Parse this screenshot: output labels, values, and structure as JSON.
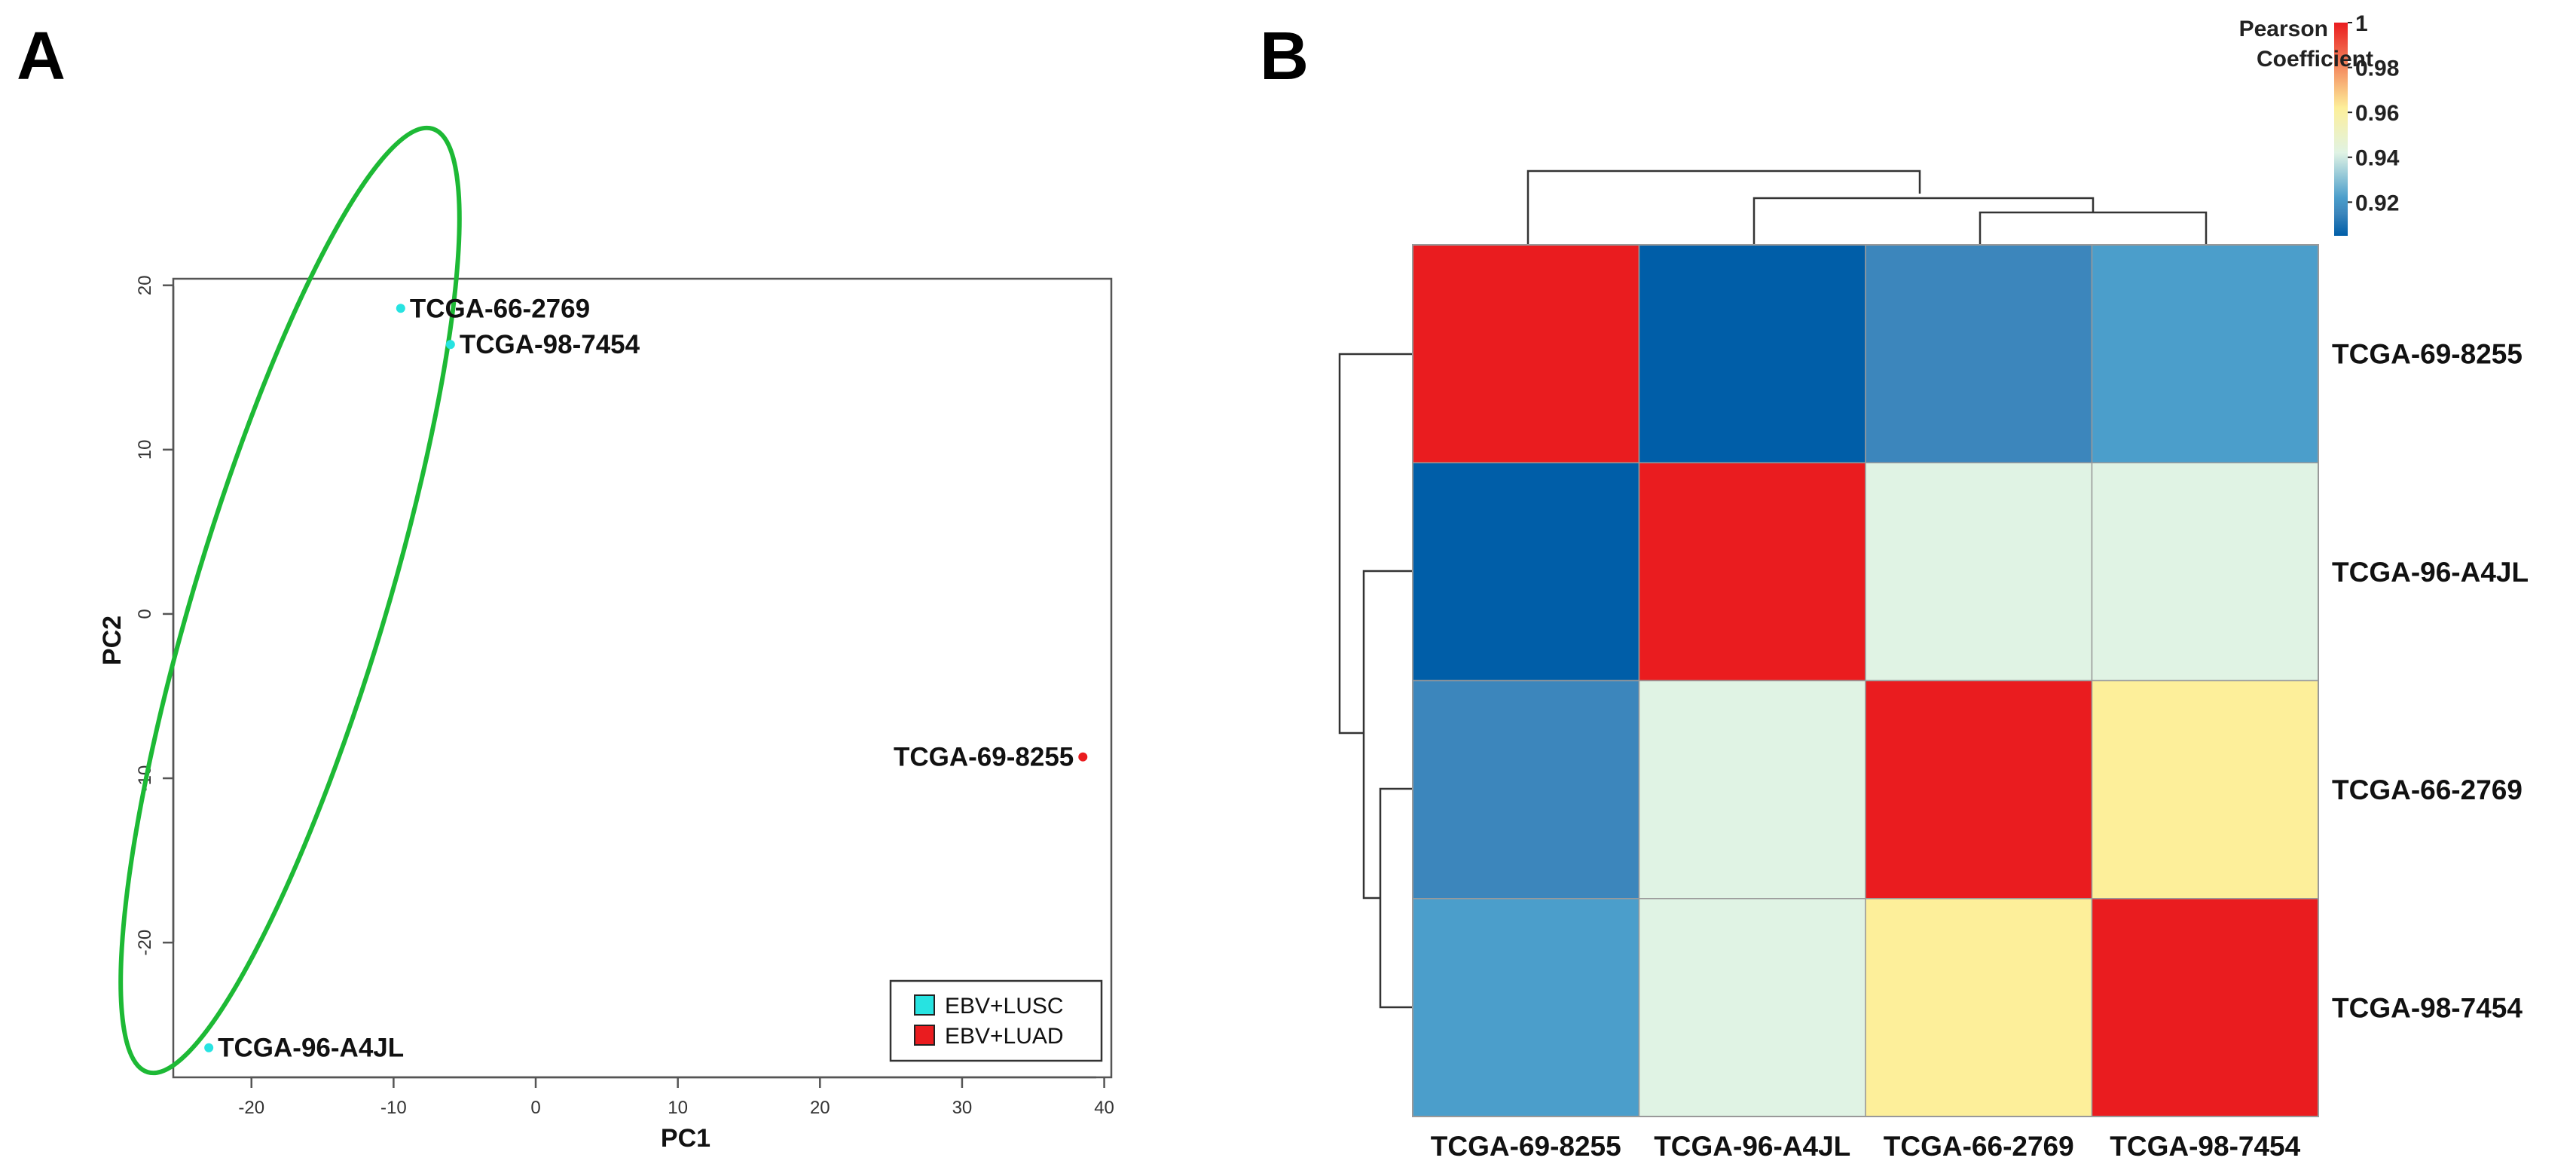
{
  "panels": {
    "a_label": "A",
    "b_label": "B"
  },
  "chart_data": [
    {
      "type": "scatter",
      "panel": "A",
      "title": "",
      "xlabel": "PC1",
      "ylabel": "PC2",
      "xlim": [
        -25.5,
        40.5
      ],
      "ylim": [
        -28.2,
        20.4
      ],
      "xticks": [
        -20,
        -10,
        0,
        10,
        20,
        30,
        40
      ],
      "yticks": [
        -20,
        -10,
        0,
        10,
        20
      ],
      "points": [
        {
          "label": "TCGA-66-2769",
          "x": -9.5,
          "y": 18.6,
          "group": "EBV+LUSC"
        },
        {
          "label": "TCGA-98-7454",
          "x": -6.0,
          "y": 16.4,
          "group": "EBV+LUSC"
        },
        {
          "label": "TCGA-96-A4JL",
          "x": -23.0,
          "y": -26.4,
          "group": "EBV+LUSC"
        },
        {
          "label": "TCGA-69-8255",
          "x": 38.5,
          "y": -8.7,
          "group": "EBV+LUAD"
        }
      ],
      "legend": [
        {
          "label": "EBV+LUSC",
          "color": "#27e3e1"
        },
        {
          "label": "EBV+LUAD",
          "color": "#ea1c1f"
        }
      ],
      "legend_position": "bottom-right",
      "ellipse_color": "#1db935",
      "grid": false
    },
    {
      "type": "heatmap",
      "panel": "B",
      "rows": [
        "TCGA-69-8255",
        "TCGA-96-A4JL",
        "TCGA-66-2769",
        "TCGA-98-7454"
      ],
      "columns": [
        "TCGA-69-8255",
        "TCGA-96-A4JL",
        "TCGA-66-2769",
        "TCGA-98-7454"
      ],
      "values": [
        [
          1.0,
          0.905,
          0.915,
          0.922
        ],
        [
          0.905,
          1.0,
          0.942,
          0.942
        ],
        [
          0.915,
          0.942,
          1.0,
          0.962
        ],
        [
          0.922,
          0.942,
          0.962,
          1.0
        ]
      ],
      "colorbar": {
        "title_line1": "Pearson",
        "title_line2": "Coefficient",
        "min": 0.905,
        "max": 1.0,
        "ticks": [
          "1",
          "0.98",
          "0.96",
          "0.94",
          "0.92"
        ]
      },
      "palette": [
        "#005ea8",
        "#3c86bc",
        "#4b9ecb",
        "#e0f3e4",
        "#fdef9a",
        "#ea1c1f"
      ],
      "row_dendrogram": true,
      "column_dendrogram": true
    }
  ]
}
